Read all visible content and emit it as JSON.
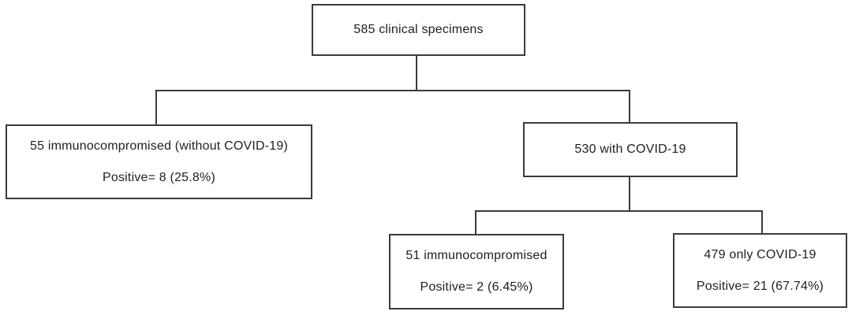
{
  "diagram": {
    "type": "flowchart",
    "nodes": {
      "root": {
        "label": "585 clinical specimens"
      },
      "without_covid": {
        "line1": "55 immunocompromised (without COVID-19)",
        "line2": "Positive= 8 (25.8%)"
      },
      "with_covid": {
        "label": "530 with COVID-19"
      },
      "immunocompromised_with_covid": {
        "line1": "51 immunocompromised",
        "line2": "Positive= 2 (6.45%)"
      },
      "only_covid": {
        "line1": "479 only COVID-19",
        "line2": "Positive= 21 (67.74%)"
      }
    },
    "edges": [
      {
        "from": "root",
        "to": "without_covid"
      },
      {
        "from": "root",
        "to": "with_covid"
      },
      {
        "from": "with_covid",
        "to": "immunocompromised_with_covid"
      },
      {
        "from": "with_covid",
        "to": "only_covid"
      }
    ],
    "colors": {
      "line": "#3b3b3b",
      "text": "#1f1f1f",
      "background": "#ffffff"
    }
  }
}
